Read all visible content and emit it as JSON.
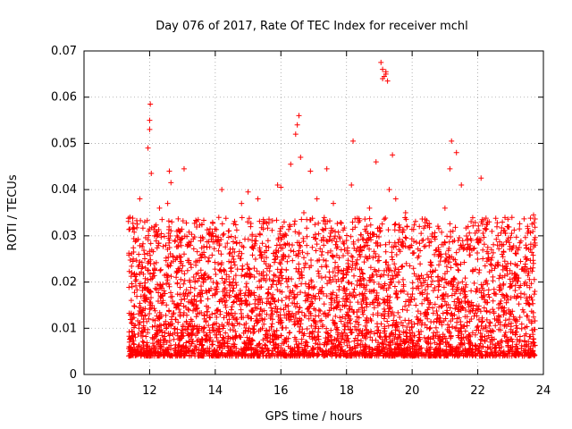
{
  "chart_data": {
    "type": "scatter",
    "title": "Day 076 of 2017, Rate Of TEC Index for receiver mchl",
    "xlabel": "GPS time / hours",
    "ylabel": "ROTI / TECUs",
    "xlim": [
      10,
      24
    ],
    "ylim": [
      0,
      0.07
    ],
    "xticks": [
      "10",
      "12",
      "14",
      "16",
      "18",
      "20",
      "22",
      "24"
    ],
    "yticks": [
      "0",
      "0.01",
      "0.02",
      "0.03",
      "0.04",
      "0.05",
      "0.06",
      "0.07"
    ],
    "grid": true,
    "marker": "+",
    "color": "#ff0000",
    "series": [
      {
        "name": "ROTI",
        "points": [
          [
            11.4,
            0.034
          ],
          [
            11.5,
            0.025
          ],
          [
            11.6,
            0.029
          ],
          [
            11.7,
            0.038
          ],
          [
            11.85,
            0.033
          ],
          [
            11.95,
            0.049
          ],
          [
            12.0,
            0.053
          ],
          [
            12.0,
            0.055
          ],
          [
            12.02,
            0.0585
          ],
          [
            12.05,
            0.0435
          ],
          [
            12.15,
            0.03
          ],
          [
            12.3,
            0.036
          ],
          [
            12.55,
            0.037
          ],
          [
            12.6,
            0.044
          ],
          [
            12.65,
            0.0415
          ],
          [
            12.9,
            0.031
          ],
          [
            13.05,
            0.0445
          ],
          [
            13.2,
            0.028
          ],
          [
            13.6,
            0.026
          ],
          [
            14.2,
            0.04
          ],
          [
            14.4,
            0.031
          ],
          [
            14.8,
            0.037
          ],
          [
            15.0,
            0.0395
          ],
          [
            15.3,
            0.038
          ],
          [
            15.9,
            0.041
          ],
          [
            16.0,
            0.0405
          ],
          [
            16.1,
            0.033
          ],
          [
            16.3,
            0.0455
          ],
          [
            16.45,
            0.052
          ],
          [
            16.5,
            0.054
          ],
          [
            16.55,
            0.056
          ],
          [
            16.6,
            0.047
          ],
          [
            16.7,
            0.035
          ],
          [
            16.9,
            0.044
          ],
          [
            17.1,
            0.038
          ],
          [
            17.4,
            0.0445
          ],
          [
            17.6,
            0.037
          ],
          [
            18.0,
            0.029
          ],
          [
            18.15,
            0.041
          ],
          [
            18.2,
            0.0505
          ],
          [
            18.7,
            0.036
          ],
          [
            18.9,
            0.046
          ],
          [
            19.05,
            0.0675
          ],
          [
            19.1,
            0.066
          ],
          [
            19.15,
            0.0645
          ],
          [
            19.2,
            0.065
          ],
          [
            19.25,
            0.0635
          ],
          [
            19.1,
            0.064
          ],
          [
            19.2,
            0.0655
          ],
          [
            19.3,
            0.04
          ],
          [
            19.4,
            0.0475
          ],
          [
            19.5,
            0.038
          ],
          [
            19.8,
            0.035
          ],
          [
            20.3,
            0.029
          ],
          [
            21.0,
            0.036
          ],
          [
            21.15,
            0.0445
          ],
          [
            21.2,
            0.0505
          ],
          [
            21.35,
            0.048
          ],
          [
            21.5,
            0.041
          ],
          [
            21.8,
            0.029
          ],
          [
            22.1,
            0.0425
          ],
          [
            22.3,
            0.033
          ],
          [
            22.6,
            0.028
          ],
          [
            22.9,
            0.032
          ],
          [
            23.2,
            0.017
          ],
          [
            23.55,
            0.022
          ],
          [
            23.7,
            0.0345
          ],
          [
            23.75,
            0.028
          ]
        ]
      }
    ]
  }
}
